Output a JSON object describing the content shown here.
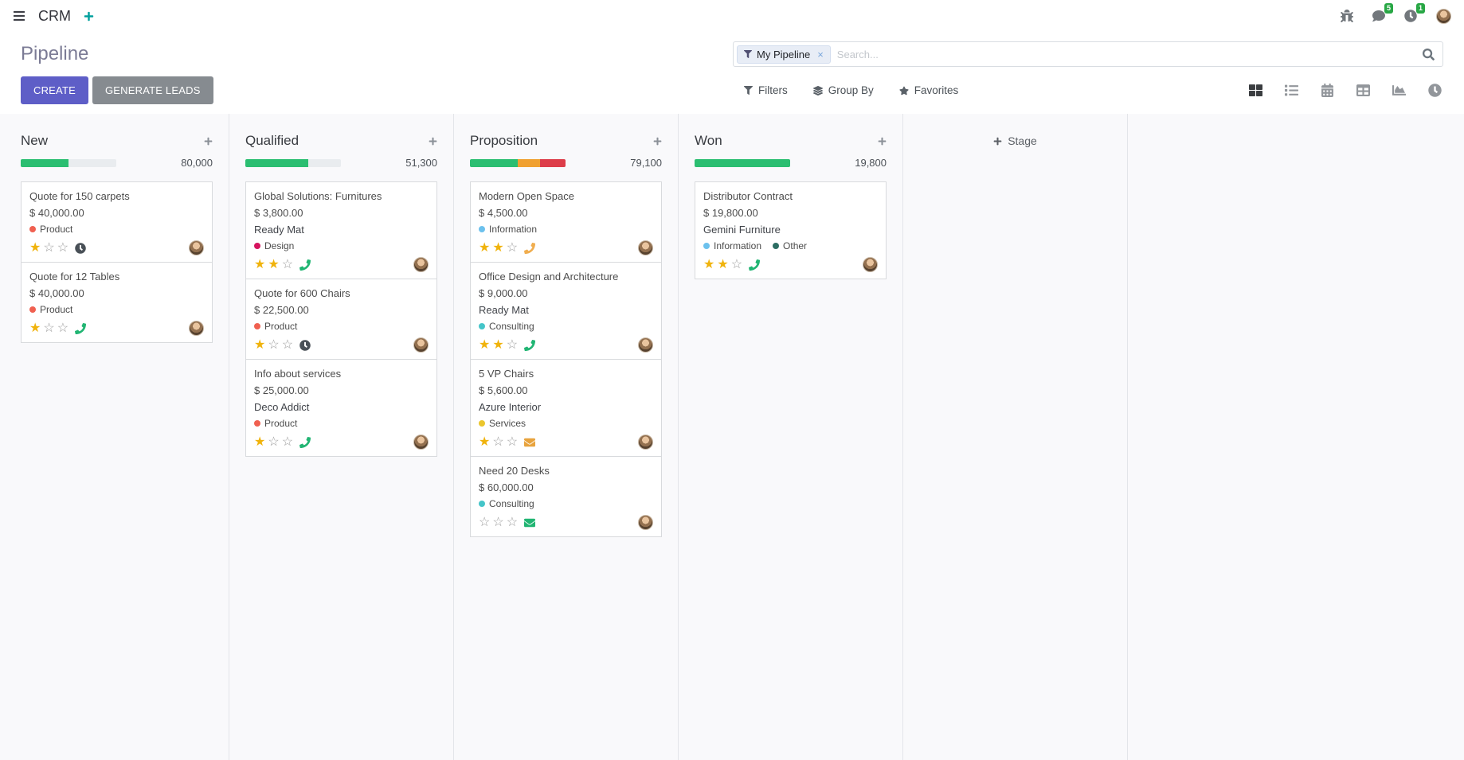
{
  "colors": {
    "primary": "#5e5ec7",
    "secondary": "#868b90",
    "star_filled": "#f0b30c",
    "star_empty": "#9d9d9d",
    "badge": "#28a745",
    "navbar_plus": "#00a09d",
    "progress_track": "#e9ecef"
  },
  "navbar": {
    "app_name": "CRM",
    "messages_badge": "5",
    "activities_badge": "1"
  },
  "control_panel": {
    "title": "Pipeline",
    "create_label": "CREATE",
    "generate_leads_label": "GENERATE LEADS",
    "search": {
      "facet": "My Pipeline",
      "placeholder": "Search..."
    },
    "filters_label": "Filters",
    "group_by_label": "Group By",
    "favorites_label": "Favorites",
    "view_switcher": {
      "active": "kanban",
      "views": [
        "kanban",
        "list",
        "calendar",
        "pivot",
        "graph",
        "activity"
      ]
    }
  },
  "board": {
    "add_stage_label": "Stage",
    "columns": [
      {
        "name": "New",
        "total": "80,000",
        "progress": [
          {
            "color": "#2bbe71",
            "pct": 50
          }
        ],
        "cards": [
          {
            "title": "Quote for 150 carpets",
            "amount": "$ 40,000.00",
            "partner": "",
            "tags": [
              {
                "label": "Product",
                "color": "#f06050"
              }
            ],
            "stars": 1,
            "activity": {
              "type": "clock",
              "color": "#495057"
            }
          },
          {
            "title": "Quote for 12 Tables",
            "amount": "$ 40,000.00",
            "partner": "",
            "tags": [
              {
                "label": "Product",
                "color": "#f06050"
              }
            ],
            "stars": 1,
            "activity": {
              "type": "phone",
              "color": "#21b573"
            }
          }
        ]
      },
      {
        "name": "Qualified",
        "total": "51,300",
        "progress": [
          {
            "color": "#2bbe71",
            "pct": 66
          }
        ],
        "cards": [
          {
            "title": "Global Solutions: Furnitures",
            "amount": "$ 3,800.00",
            "partner": "Ready Mat",
            "tags": [
              {
                "label": "Design",
                "color": "#d6145f"
              }
            ],
            "stars": 2,
            "activity": {
              "type": "phone",
              "color": "#21b573"
            }
          },
          {
            "title": "Quote for 600 Chairs",
            "amount": "$ 22,500.00",
            "partner": "",
            "tags": [
              {
                "label": "Product",
                "color": "#f06050"
              }
            ],
            "stars": 1,
            "activity": {
              "type": "clock",
              "color": "#495057"
            }
          },
          {
            "title": "Info about services",
            "amount": "$ 25,000.00",
            "partner": "Deco Addict",
            "tags": [
              {
                "label": "Product",
                "color": "#f06050"
              }
            ],
            "stars": 1,
            "activity": {
              "type": "phone",
              "color": "#21b573"
            }
          }
        ]
      },
      {
        "name": "Proposition",
        "total": "79,100",
        "progress": [
          {
            "color": "#2bbe71",
            "pct": 50
          },
          {
            "color": "#f0a030",
            "pct": 23
          },
          {
            "color": "#dd3d49",
            "pct": 27
          }
        ],
        "cards": [
          {
            "title": "Modern Open Space",
            "amount": "$ 4,500.00",
            "partner": "",
            "tags": [
              {
                "label": "Information",
                "color": "#6cc1ed"
              }
            ],
            "stars": 2,
            "activity": {
              "type": "phone",
              "color": "#f0ad4e"
            }
          },
          {
            "title": "Office Design and Architecture",
            "amount": "$ 9,000.00",
            "partner": "Ready Mat",
            "tags": [
              {
                "label": "Consulting",
                "color": "#45c5c9"
              }
            ],
            "stars": 2,
            "activity": {
              "type": "phone",
              "color": "#21b573"
            }
          },
          {
            "title": "5 VP Chairs",
            "amount": "$ 5,600.00",
            "partner": "Azure Interior",
            "tags": [
              {
                "label": "Services",
                "color": "#ebc62d"
              }
            ],
            "stars": 1,
            "activity": {
              "type": "envelope",
              "color": "#e8a33d"
            }
          },
          {
            "title": "Need 20 Desks",
            "amount": "$ 60,000.00",
            "partner": "",
            "tags": [
              {
                "label": "Consulting",
                "color": "#45c5c9"
              }
            ],
            "stars": 0,
            "activity": {
              "type": "envelope",
              "color": "#21b573"
            }
          }
        ]
      },
      {
        "name": "Won",
        "total": "19,800",
        "progress": [
          {
            "color": "#2bbe71",
            "pct": 100
          }
        ],
        "cards": [
          {
            "title": "Distributor Contract",
            "amount": "$ 19,800.00",
            "partner": "Gemini Furniture",
            "tags": [
              {
                "label": "Information",
                "color": "#6cc1ed"
              },
              {
                "label": "Other",
                "color": "#2d6e63"
              }
            ],
            "stars": 2,
            "activity": {
              "type": "phone",
              "color": "#21b573"
            }
          }
        ]
      }
    ]
  }
}
